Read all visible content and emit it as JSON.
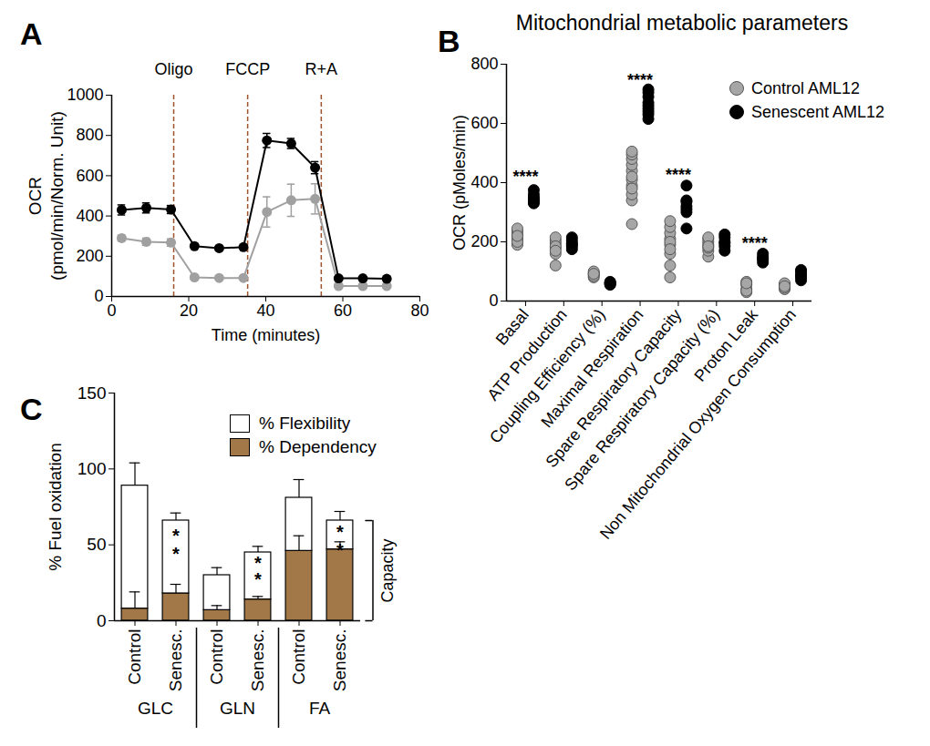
{
  "chart_data": [
    {
      "panel": "A",
      "type": "line",
      "marker": "circle",
      "x_label": "Time (minutes)",
      "y_label": "OCR\n(pmol/min/Norm. Unit)",
      "x": [
        2.6,
        9.0,
        15.4,
        21.5,
        27.9,
        34.2,
        40.3,
        46.6,
        52.8,
        58.9,
        65.2,
        71.4
      ],
      "xlim": [
        0,
        80
      ],
      "xticks": [
        0,
        20,
        40,
        60,
        80
      ],
      "ylim": [
        0,
        1000
      ],
      "yticks": [
        0,
        200,
        400,
        600,
        800,
        1000
      ],
      "series": [
        {
          "name": "Control AML12",
          "color": "#a0a0a0",
          "values": [
            290,
            272,
            268,
            95,
            92,
            92,
            420,
            478,
            485,
            52,
            52,
            52
          ],
          "errors": [
            15,
            18,
            18,
            8,
            6,
            6,
            75,
            80,
            75,
            6,
            5,
            5
          ]
        },
        {
          "name": "Senescent AML12",
          "color": "#000000",
          "values": [
            430,
            440,
            432,
            250,
            240,
            245,
            775,
            760,
            640,
            90,
            90,
            88
          ],
          "errors": [
            25,
            25,
            20,
            8,
            8,
            8,
            35,
            25,
            30,
            5,
            5,
            5
          ]
        }
      ],
      "annotations": [
        {
          "x": 16.1,
          "label": "Oligo"
        },
        {
          "x": 35.3,
          "label": "FCCP"
        },
        {
          "x": 54.4,
          "label": "R+A"
        }
      ]
    },
    {
      "panel": "B",
      "type": "scatter",
      "marker": "circle",
      "legend": "top-right",
      "title": "Mitochondrial metabolic parameters",
      "y_label": "OCR (pMoles/min)",
      "categories": [
        "Basal",
        "ATP Production",
        "Coupling Efficiency (%)",
        "Maximal Respiration",
        "Spare Respiratory Capacity",
        "Spare Respiratory Capacity (%)",
        "Proton Leak",
        "Non Mitochondrial Oxygen Consumption"
      ],
      "ylim": [
        0,
        800
      ],
      "yticks": [
        0,
        200,
        400,
        600,
        800
      ],
      "series": [
        {
          "name": "Control AML12",
          "color": "#a6a6a6",
          "values": [
            [
              190,
              205,
              215,
              225,
              235,
              245,
              200,
              220
            ],
            [
              120,
              160,
              180,
              195,
              205,
              215,
              185,
              170
            ],
            [
              80,
              90,
              95,
              100,
              85,
              92
            ],
            [
              260,
              340,
              360,
              390,
              410,
              440,
              460,
              480,
              495,
              505,
              420,
              380
            ],
            [
              80,
              120,
              160,
              190,
              210,
              230,
              250,
              270,
              200,
              175
            ],
            [
              150,
              170,
              180,
              190,
              200,
              210,
              215,
              185
            ],
            [
              30,
              40,
              55,
              65,
              35,
              60
            ],
            [
              40,
              45,
              55,
              60,
              50
            ]
          ]
        },
        {
          "name": "Senescent AML12",
          "color": "#000000",
          "values": [
            [
              330,
              340,
              350,
              360,
              375,
              345,
              335
            ],
            [
              175,
              185,
              195,
              205,
              215,
              190
            ],
            [
              55,
              60,
              65,
              58,
              62
            ],
            [
              615,
              630,
              650,
              670,
              690,
              705,
              715,
              660,
              640
            ],
            [
              245,
              300,
              320,
              335,
              340,
              390,
              310
            ],
            [
              170,
              185,
              200,
              215,
              225,
              195
            ],
            [
              130,
              140,
              150,
              160,
              145
            ],
            [
              70,
              80,
              90,
              100,
              105,
              85
            ]
          ]
        }
      ],
      "annotations": [
        {
          "category": "Basal",
          "y": 420,
          "label": "****"
        },
        {
          "category": "Maximal Respiration",
          "y": 745,
          "label": "****"
        },
        {
          "category": "Spare Respiratory Capacity",
          "y": 425,
          "label": "****"
        },
        {
          "category": "Proton Leak",
          "y": 195,
          "label": "****"
        }
      ]
    },
    {
      "panel": "C",
      "type": "bar",
      "stacked": true,
      "legend": "top-right",
      "y_label": "% Fuel oxidation",
      "categories": [
        "Control",
        "Senesc.",
        "Control",
        "Senesc.",
        "Control",
        "Senesc."
      ],
      "group": [
        "GLC",
        "GLC",
        "GLN",
        "GLN",
        "FA",
        "FA"
      ],
      "ylim": [
        0,
        150
      ],
      "yticks": [
        0,
        50,
        100,
        150
      ],
      "series": [
        {
          "name": "% Flexibility",
          "color": "#ffffff",
          "values": [
            81,
            48,
            23,
            31,
            35,
            19
          ],
          "errors": [
            15,
            5,
            5,
            4,
            12,
            6
          ]
        },
        {
          "name": "% Dependency",
          "color": "#a37848",
          "values": [
            8,
            18,
            7,
            14,
            46,
            47
          ],
          "errors": [
            11,
            6,
            3,
            2,
            10,
            5
          ]
        }
      ],
      "annotations": [
        {
          "category_index": 1,
          "y": 56,
          "label": "*"
        },
        {
          "category_index": 1,
          "y": 44,
          "label": "*"
        },
        {
          "category_index": 3,
          "y": 38,
          "label": "*"
        },
        {
          "category_index": 3,
          "y": 27,
          "label": "*"
        },
        {
          "category_index": 5,
          "y": 58,
          "label": "*"
        },
        {
          "category_index": 5,
          "y": 46,
          "label": "*"
        }
      ],
      "bracket_label": "Capacity"
    }
  ]
}
